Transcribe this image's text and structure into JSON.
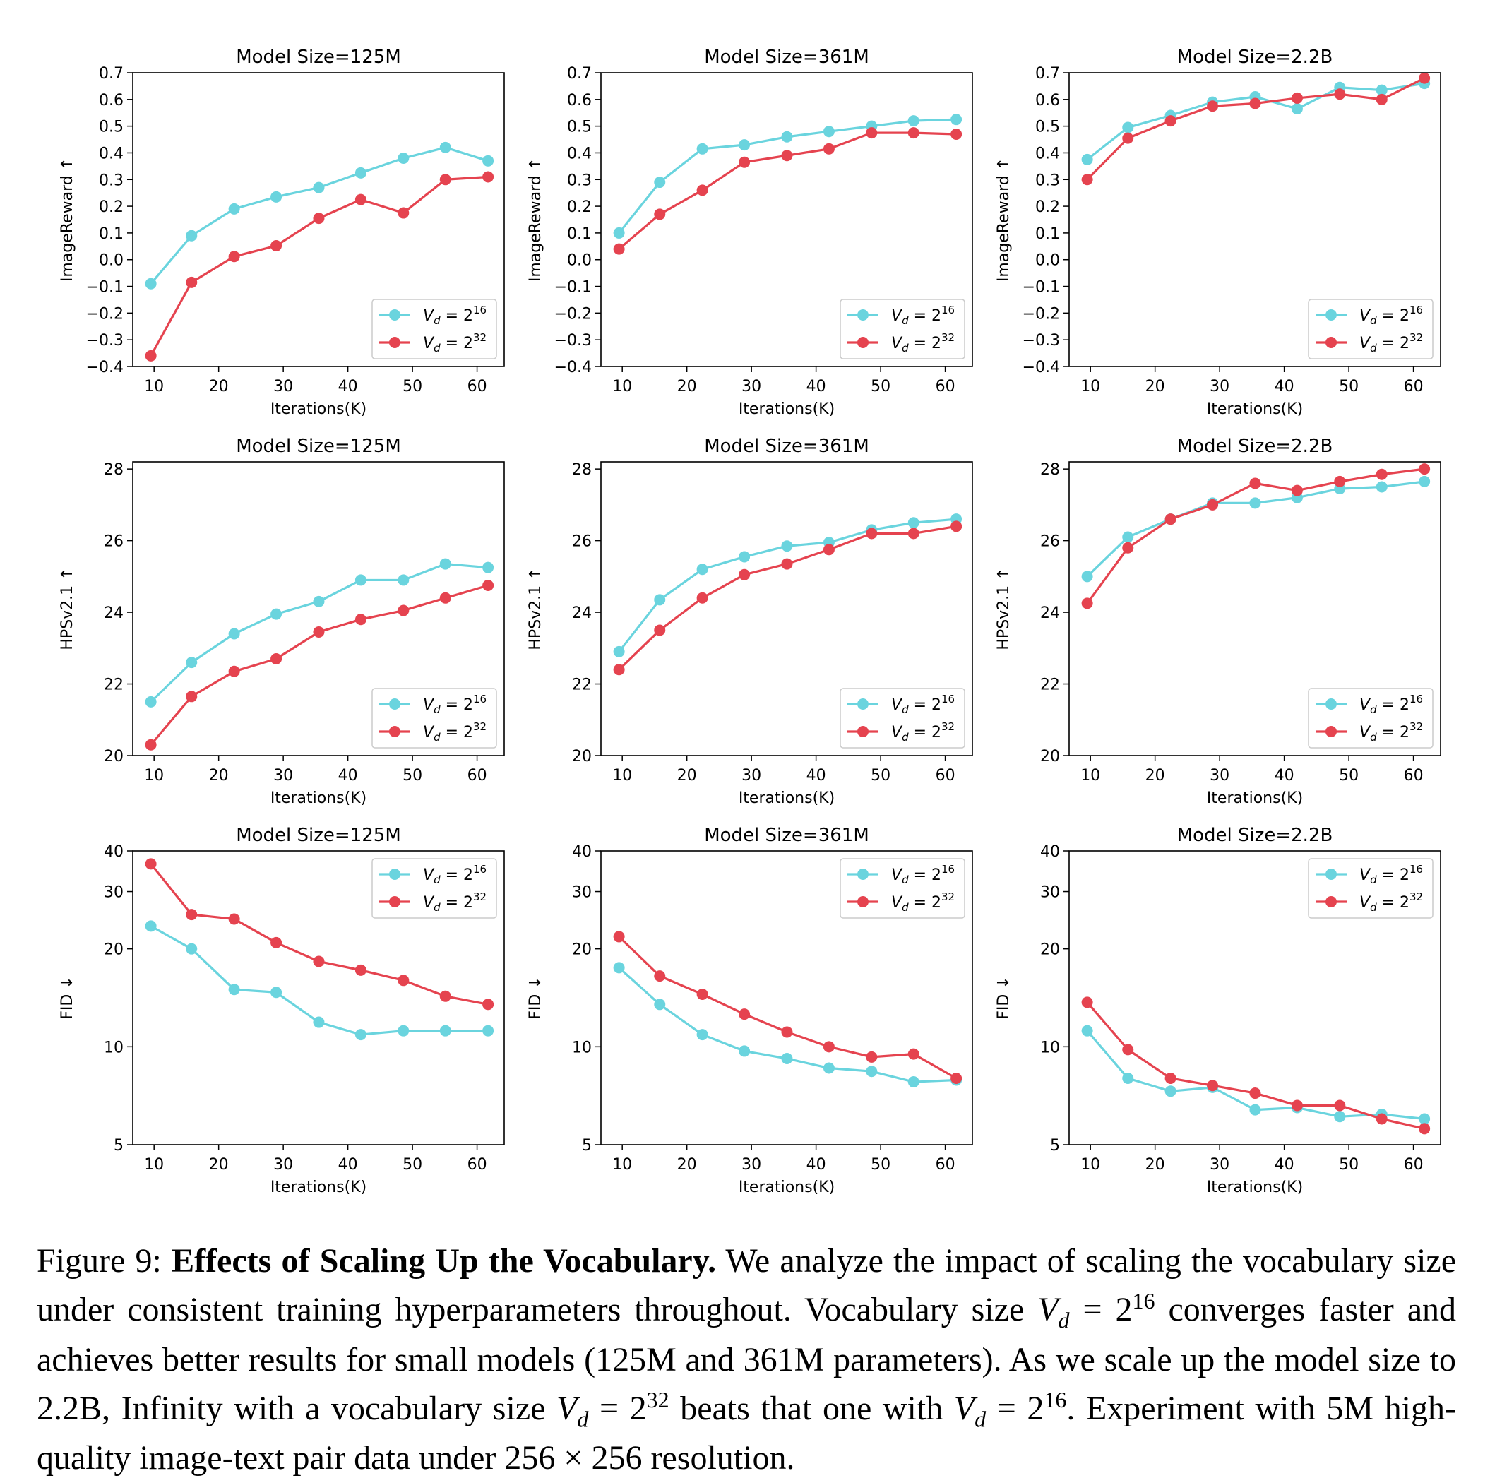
{
  "colors": {
    "v16": "#6ad4de",
    "v32": "#e5434f"
  },
  "legend": {
    "items": [
      {
        "var": "V",
        "sub": "d",
        "eq": " = 2",
        "sup": "16",
        "color_key": "v16"
      },
      {
        "var": "V",
        "sub": "d",
        "eq": " = 2",
        "sup": "32",
        "color_key": "v32"
      }
    ]
  },
  "chart_data": [
    {
      "type": "line",
      "title": "Model Size=125M",
      "xlabel": "Iterations(K)",
      "ylabel": "ImageReward ↑",
      "yscale": "linear",
      "ylim": [
        -0.4,
        0.7
      ],
      "yticks": [
        -0.4,
        -0.3,
        -0.2,
        -0.1,
        0.0,
        0.1,
        0.2,
        0.3,
        0.4,
        0.5,
        0.6,
        0.7
      ],
      "ytick_labels": [
        "−0.4",
        "−0.3",
        "−0.2",
        "−0.1",
        "0.0",
        "0.1",
        "0.2",
        "0.3",
        "0.4",
        "0.5",
        "0.6",
        "0.7"
      ],
      "xlim": [
        6.7,
        64.2
      ],
      "xticks": [
        10,
        20,
        30,
        40,
        50,
        60
      ],
      "legend": "lower-right",
      "grid": false,
      "x": [
        9.5,
        15.8,
        22.4,
        28.9,
        35.5,
        42.0,
        48.6,
        55.1,
        61.7
      ],
      "series": [
        {
          "name": "V_d = 2^16",
          "color_key": "v16",
          "values": [
            -0.09,
            0.09,
            0.19,
            0.235,
            0.27,
            0.325,
            0.38,
            0.42,
            0.37
          ]
        },
        {
          "name": "V_d = 2^32",
          "color_key": "v32",
          "values": [
            -0.36,
            -0.085,
            0.012,
            0.052,
            0.155,
            0.225,
            0.175,
            0.3,
            0.31
          ]
        }
      ]
    },
    {
      "type": "line",
      "title": "Model Size=361M",
      "xlabel": "Iterations(K)",
      "ylabel": "ImageReward ↑",
      "yscale": "linear",
      "ylim": [
        -0.4,
        0.7
      ],
      "yticks": [
        -0.4,
        -0.3,
        -0.2,
        -0.1,
        0.0,
        0.1,
        0.2,
        0.3,
        0.4,
        0.5,
        0.6,
        0.7
      ],
      "ytick_labels": [
        "−0.4",
        "−0.3",
        "−0.2",
        "−0.1",
        "0.0",
        "0.1",
        "0.2",
        "0.3",
        "0.4",
        "0.5",
        "0.6",
        "0.7"
      ],
      "xlim": [
        6.7,
        64.2
      ],
      "xticks": [
        10,
        20,
        30,
        40,
        50,
        60
      ],
      "legend": "lower-right",
      "grid": false,
      "x": [
        9.5,
        15.8,
        22.4,
        28.9,
        35.5,
        42.0,
        48.6,
        55.1,
        61.7
      ],
      "series": [
        {
          "name": "V_d = 2^16",
          "color_key": "v16",
          "values": [
            0.1,
            0.29,
            0.415,
            0.43,
            0.46,
            0.48,
            0.5,
            0.52,
            0.525
          ]
        },
        {
          "name": "V_d = 2^32",
          "color_key": "v32",
          "values": [
            0.04,
            0.17,
            0.26,
            0.365,
            0.39,
            0.415,
            0.475,
            0.475,
            0.47
          ]
        }
      ]
    },
    {
      "type": "line",
      "title": "Model Size=2.2B",
      "xlabel": "Iterations(K)",
      "ylabel": "ImageReward ↑",
      "yscale": "linear",
      "ylim": [
        -0.4,
        0.7
      ],
      "yticks": [
        -0.4,
        -0.3,
        -0.2,
        -0.1,
        0.0,
        0.1,
        0.2,
        0.3,
        0.4,
        0.5,
        0.6,
        0.7
      ],
      "ytick_labels": [
        "−0.4",
        "−0.3",
        "−0.2",
        "−0.1",
        "0.0",
        "0.1",
        "0.2",
        "0.3",
        "0.4",
        "0.5",
        "0.6",
        "0.7"
      ],
      "xlim": [
        6.7,
        64.2
      ],
      "xticks": [
        10,
        20,
        30,
        40,
        50,
        60
      ],
      "legend": "lower-right",
      "grid": false,
      "x": [
        9.5,
        15.8,
        22.4,
        28.9,
        35.5,
        42.0,
        48.6,
        55.1,
        61.7
      ],
      "series": [
        {
          "name": "V_d = 2^16",
          "color_key": "v16",
          "values": [
            0.375,
            0.495,
            0.54,
            0.59,
            0.61,
            0.565,
            0.645,
            0.635,
            0.66
          ]
        },
        {
          "name": "V_d = 2^32",
          "color_key": "v32",
          "values": [
            0.3,
            0.455,
            0.52,
            0.575,
            0.585,
            0.605,
            0.62,
            0.6,
            0.68
          ]
        }
      ]
    },
    {
      "type": "line",
      "title": "Model Size=125M",
      "xlabel": "Iterations(K)",
      "ylabel": "HPSv2.1 ↑",
      "yscale": "linear",
      "ylim": [
        20,
        28.2
      ],
      "yticks": [
        20,
        22,
        24,
        26,
        28
      ],
      "ytick_labels": [
        "20",
        "22",
        "24",
        "26",
        "28"
      ],
      "xlim": [
        6.7,
        64.2
      ],
      "xticks": [
        10,
        20,
        30,
        40,
        50,
        60
      ],
      "legend": "lower-right",
      "grid": false,
      "x": [
        9.5,
        15.8,
        22.4,
        28.9,
        35.5,
        42.0,
        48.6,
        55.1,
        61.7
      ],
      "series": [
        {
          "name": "V_d = 2^16",
          "color_key": "v16",
          "values": [
            21.5,
            22.6,
            23.4,
            23.95,
            24.3,
            24.9,
            24.9,
            25.35,
            25.25
          ]
        },
        {
          "name": "V_d = 2^32",
          "color_key": "v32",
          "values": [
            20.3,
            21.65,
            22.35,
            22.7,
            23.45,
            23.8,
            24.05,
            24.4,
            24.75
          ]
        }
      ]
    },
    {
      "type": "line",
      "title": "Model Size=361M",
      "xlabel": "Iterations(K)",
      "ylabel": "HPSv2.1 ↑",
      "yscale": "linear",
      "ylim": [
        20,
        28.2
      ],
      "yticks": [
        20,
        22,
        24,
        26,
        28
      ],
      "ytick_labels": [
        "20",
        "22",
        "24",
        "26",
        "28"
      ],
      "xlim": [
        6.7,
        64.2
      ],
      "xticks": [
        10,
        20,
        30,
        40,
        50,
        60
      ],
      "legend": "lower-right",
      "grid": false,
      "x": [
        9.5,
        15.8,
        22.4,
        28.9,
        35.5,
        42.0,
        48.6,
        55.1,
        61.7
      ],
      "series": [
        {
          "name": "V_d = 2^16",
          "color_key": "v16",
          "values": [
            22.9,
            24.35,
            25.2,
            25.55,
            25.85,
            25.95,
            26.3,
            26.5,
            26.6
          ]
        },
        {
          "name": "V_d = 2^32",
          "color_key": "v32",
          "values": [
            22.4,
            23.5,
            24.4,
            25.05,
            25.35,
            25.75,
            26.2,
            26.2,
            26.4
          ]
        }
      ]
    },
    {
      "type": "line",
      "title": "Model Size=2.2B",
      "xlabel": "Iterations(K)",
      "ylabel": "HPSv2.1 ↑",
      "yscale": "linear",
      "ylim": [
        20,
        28.2
      ],
      "yticks": [
        20,
        22,
        24,
        26,
        28
      ],
      "ytick_labels": [
        "20",
        "22",
        "24",
        "26",
        "28"
      ],
      "xlim": [
        6.7,
        64.2
      ],
      "xticks": [
        10,
        20,
        30,
        40,
        50,
        60
      ],
      "legend": "lower-right",
      "grid": false,
      "x": [
        9.5,
        15.8,
        22.4,
        28.9,
        35.5,
        42.0,
        48.6,
        55.1,
        61.7
      ],
      "series": [
        {
          "name": "V_d = 2^16",
          "color_key": "v16",
          "values": [
            25.0,
            26.1,
            26.6,
            27.05,
            27.05,
            27.2,
            27.45,
            27.5,
            27.65
          ]
        },
        {
          "name": "V_d = 2^32",
          "color_key": "v32",
          "values": [
            24.25,
            25.8,
            26.6,
            27.0,
            27.6,
            27.4,
            27.65,
            27.85,
            28.0
          ]
        }
      ]
    },
    {
      "type": "line",
      "title": "Model Size=125M",
      "xlabel": "Iterations(K)",
      "ylabel": "FID ↓",
      "yscale": "log",
      "ylim": [
        5,
        40
      ],
      "yticks": [
        5,
        10,
        20,
        30,
        40
      ],
      "ytick_labels": [
        "5",
        "10",
        "20",
        "30",
        "40"
      ],
      "xlim": [
        6.7,
        64.2
      ],
      "xticks": [
        10,
        20,
        30,
        40,
        50,
        60
      ],
      "legend": "upper-right",
      "grid": false,
      "x": [
        9.5,
        15.8,
        22.4,
        28.9,
        35.5,
        42.0,
        48.6,
        55.1,
        61.7
      ],
      "series": [
        {
          "name": "V_d = 2^16",
          "color_key": "v16",
          "values": [
            23.5,
            20.0,
            15.0,
            14.7,
            11.9,
            10.9,
            11.2,
            11.2,
            11.2
          ]
        },
        {
          "name": "V_d = 2^32",
          "color_key": "v32",
          "values": [
            36.5,
            25.5,
            24.7,
            20.9,
            18.3,
            17.2,
            16.0,
            14.3,
            13.5
          ]
        }
      ]
    },
    {
      "type": "line",
      "title": "Model Size=361M",
      "xlabel": "Iterations(K)",
      "ylabel": "FID ↓",
      "yscale": "log",
      "ylim": [
        5,
        40
      ],
      "yticks": [
        5,
        10,
        20,
        30,
        40
      ],
      "ytick_labels": [
        "5",
        "10",
        "20",
        "30",
        "40"
      ],
      "xlim": [
        6.7,
        64.2
      ],
      "xticks": [
        10,
        20,
        30,
        40,
        50,
        60
      ],
      "legend": "upper-right",
      "grid": false,
      "x": [
        9.5,
        15.8,
        22.4,
        28.9,
        35.5,
        42.0,
        48.6,
        55.1,
        61.7
      ],
      "series": [
        {
          "name": "V_d = 2^16",
          "color_key": "v16",
          "values": [
            17.5,
            13.5,
            10.9,
            9.7,
            9.2,
            8.6,
            8.4,
            7.8,
            7.9
          ]
        },
        {
          "name": "V_d = 2^32",
          "color_key": "v32",
          "values": [
            21.8,
            16.5,
            14.5,
            12.6,
            11.1,
            10.0,
            9.3,
            9.5,
            8.0
          ]
        }
      ]
    },
    {
      "type": "line",
      "title": "Model Size=2.2B",
      "xlabel": "Iterations(K)",
      "ylabel": "FID ↓",
      "yscale": "log",
      "ylim": [
        5,
        40
      ],
      "yticks": [
        5,
        10,
        20,
        30,
        40
      ],
      "ytick_labels": [
        "5",
        "10",
        "20",
        "30",
        "40"
      ],
      "xlim": [
        6.7,
        64.2
      ],
      "xticks": [
        10,
        20,
        30,
        40,
        50,
        60
      ],
      "legend": "upper-right",
      "grid": false,
      "x": [
        9.5,
        15.8,
        22.4,
        28.9,
        35.5,
        42.0,
        48.6,
        55.1,
        61.7
      ],
      "series": [
        {
          "name": "V_d = 2^16",
          "color_key": "v16",
          "values": [
            11.2,
            8.0,
            7.3,
            7.5,
            6.4,
            6.5,
            6.1,
            6.2,
            6.0
          ]
        },
        {
          "name": "V_d = 2^32",
          "color_key": "v32",
          "values": [
            13.7,
            9.8,
            8.0,
            7.6,
            7.2,
            6.6,
            6.6,
            6.0,
            5.6
          ]
        }
      ]
    }
  ],
  "caption": {
    "label": "Figure 9: ",
    "bold": "Effects of Scaling Up the Vocabulary.",
    "t1": " We analyze the impact of scaling the vocabulary size under consistent training hyperparameters throughout.  Vocabulary size ",
    "m1_var": "V",
    "m1_sub": "d",
    "m1_eq": " = 2",
    "m1_sup": "16",
    "t2": " converges faster and achieves better results for small models (125M and 361M parameters). As we scale up the model size to 2.2B, Infinity with a vocabulary size ",
    "m2_var": "V",
    "m2_sub": "d",
    "m2_eq": " = 2",
    "m2_sup": "32",
    "t3": " beats that one with ",
    "m3_var": "V",
    "m3_sub": "d",
    "m3_eq": " = 2",
    "m3_sup": "16",
    "t4": ". Experiment with 5M high-quality image-text pair data under 256 × 256 resolution."
  }
}
